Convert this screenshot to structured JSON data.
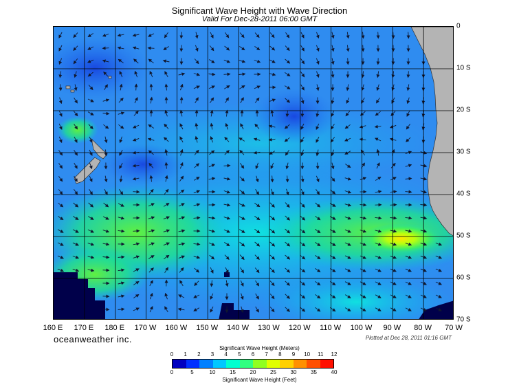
{
  "title": "Significant Wave Height with Wave Direction",
  "subtitle": "Valid For Dec-28-2011 06:00 GMT",
  "lon_labels": [
    "160 E",
    "170 E",
    "180 E",
    "170 W",
    "160 W",
    "150 W",
    "140 W",
    "130 W",
    "120 W",
    "110 W",
    "100 W",
    "90 W",
    "80 W",
    "70 W"
  ],
  "lat_labels": [
    "0",
    "10 S",
    "20 S",
    "30 S",
    "40 S",
    "50 S",
    "60 S",
    "70 S"
  ],
  "brand": "oceanweather inc.",
  "plotted": "Plotted at Dec 28, 2011 01:16 GMT",
  "legend": {
    "meters_title": "Significant Wave Height (Meters)",
    "feet_title": "Significant Wave Height (Feet)",
    "meter_ticks": [
      "0",
      "1",
      "2",
      "3",
      "4",
      "5",
      "6",
      "7",
      "8",
      "9",
      "10",
      "11",
      "12"
    ],
    "feet_ticks": [
      "0",
      "5",
      "10",
      "15",
      "20",
      "25",
      "30",
      "35",
      "40"
    ],
    "colors": [
      "#0000c0",
      "#0030ff",
      "#0080ff",
      "#00c8ff",
      "#00ffd0",
      "#30ff80",
      "#90ff20",
      "#e0ff00",
      "#ffd000",
      "#ff9000",
      "#ff5000",
      "#ff1000"
    ]
  },
  "colors": {
    "ocean_base": "#2f8cf0",
    "land": "#b4b4b4",
    "ice": "#00004a",
    "grid": "#000000",
    "arrow": "#101830"
  }
}
